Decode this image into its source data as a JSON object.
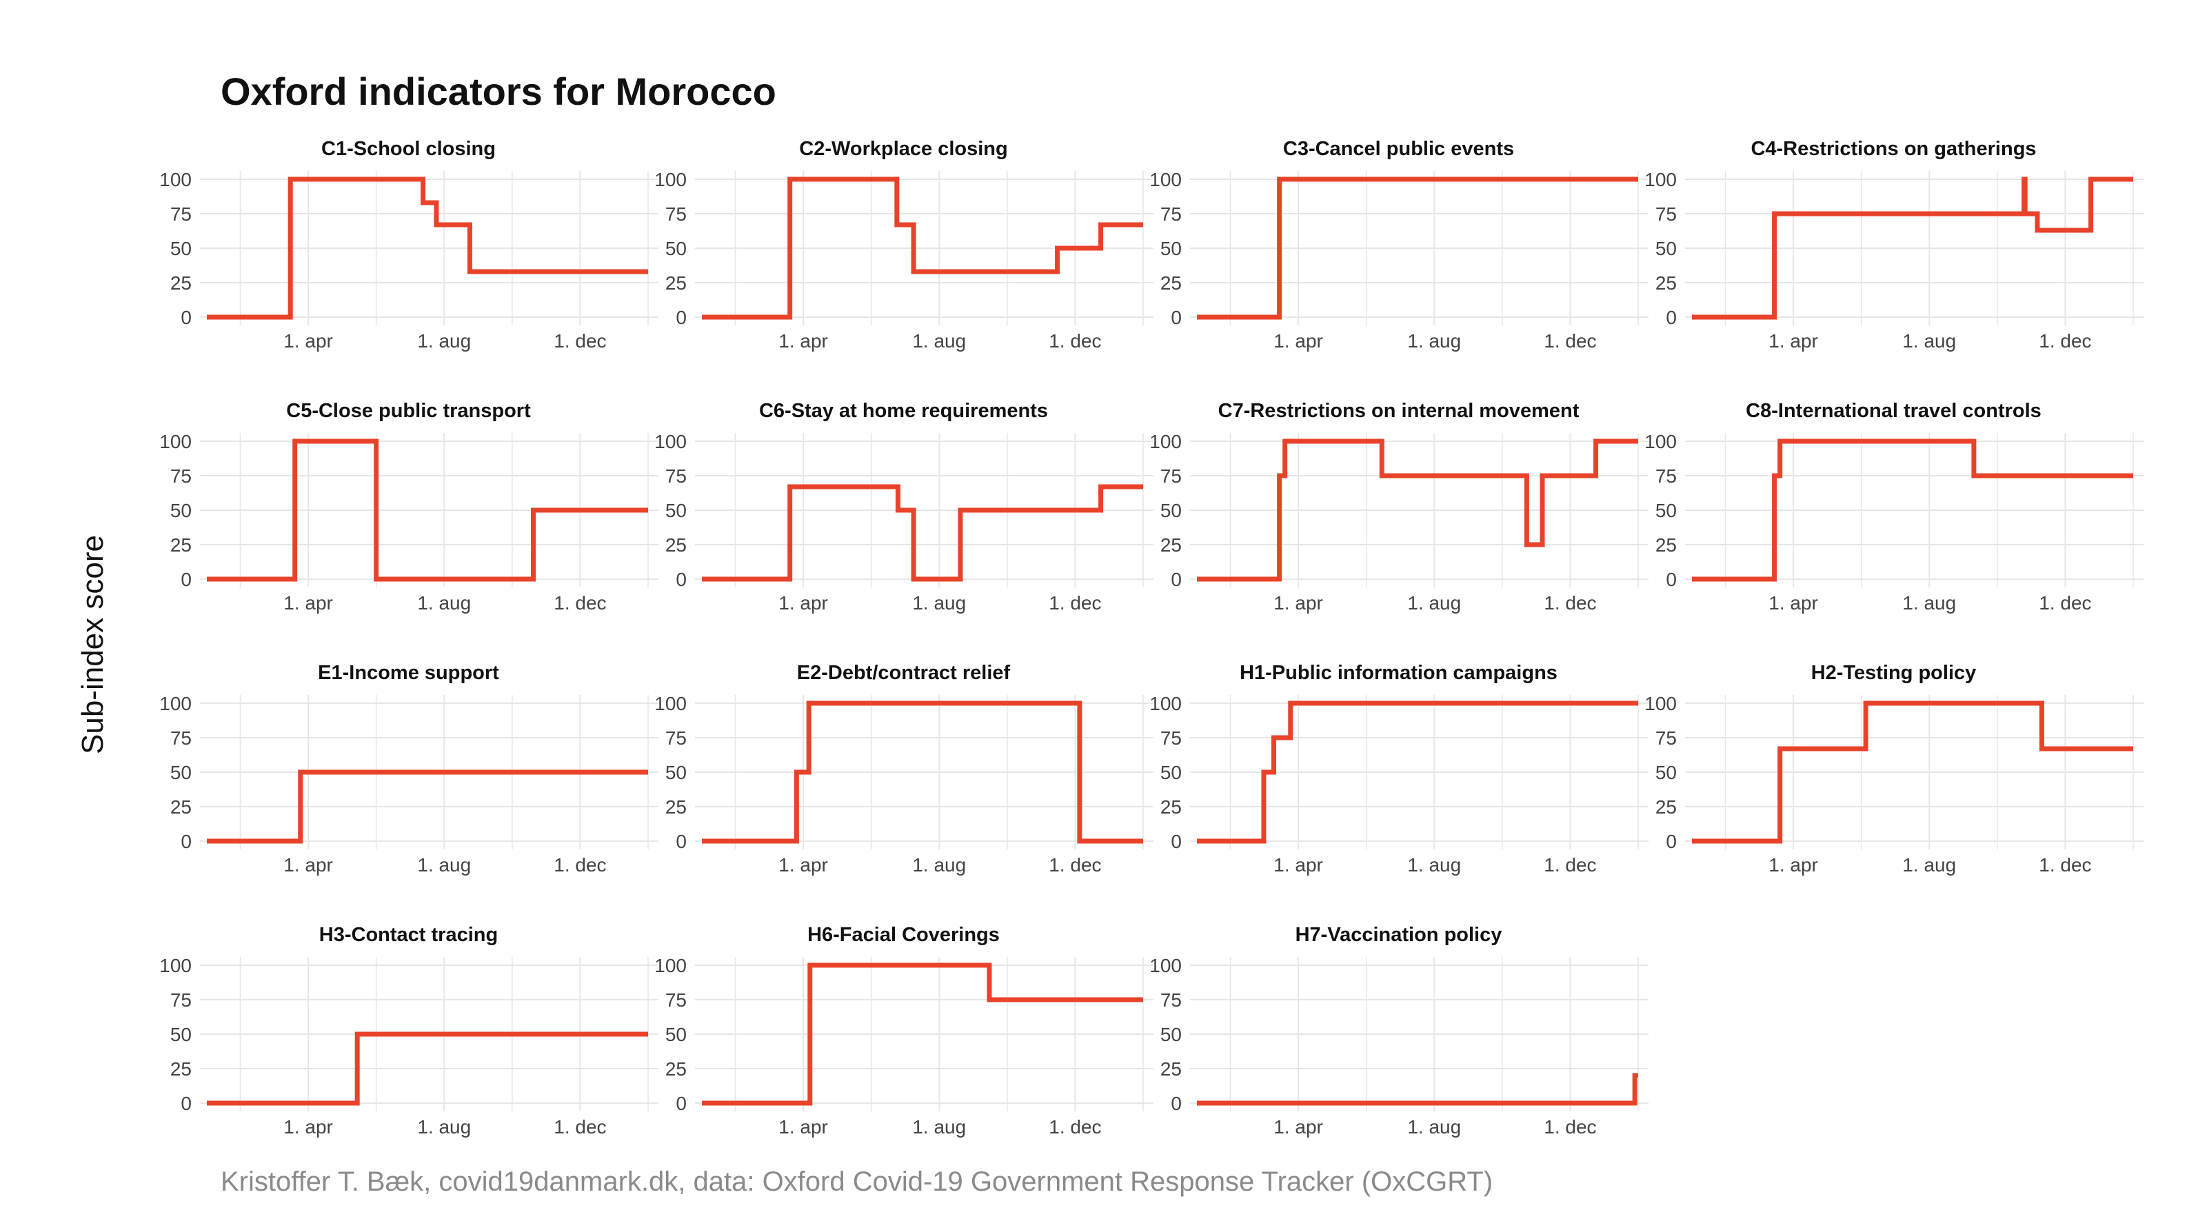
{
  "title": "Oxford indicators for Morocco",
  "ylabel": "Sub-index score",
  "caption": "Kristoffer T. Bæk, covid19danmark.dk, data: Oxford Covid-19 Government Response Tracker (OxCGRT)",
  "colors": {
    "line": "#e8432a",
    "grid": "#e6e6e6",
    "text": "#444444"
  },
  "chart_data": [
    {
      "type": "line",
      "title": "C1-School closing",
      "ylim": [
        0,
        100
      ],
      "yticks": [
        0,
        25,
        50,
        75,
        100
      ],
      "xlim": [
        "2020-01-01",
        "2021-01-31"
      ],
      "xticks": [
        "2020-04-01",
        "2020-08-01",
        "2020-12-01"
      ],
      "xticklabels": [
        "1. apr",
        "1. aug",
        "1. dec"
      ],
      "step": true,
      "points": [
        [
          "2020-01-01",
          0
        ],
        [
          "2020-03-16",
          100
        ],
        [
          "2020-07-13",
          83
        ],
        [
          "2020-07-25",
          67
        ],
        [
          "2020-08-24",
          33
        ],
        [
          "2021-01-31",
          33
        ]
      ]
    },
    {
      "type": "line",
      "title": "C2-Workplace closing",
      "ylim": [
        0,
        100
      ],
      "yticks": [
        0,
        25,
        50,
        75,
        100
      ],
      "xlim": [
        "2020-01-01",
        "2021-01-31"
      ],
      "xticks": [
        "2020-04-01",
        "2020-08-01",
        "2020-12-01"
      ],
      "xticklabels": [
        "1. apr",
        "1. aug",
        "1. dec"
      ],
      "step": true,
      "points": [
        [
          "2020-01-01",
          0
        ],
        [
          "2020-03-20",
          100
        ],
        [
          "2020-06-24",
          67
        ],
        [
          "2020-07-09",
          33
        ],
        [
          "2020-11-15",
          50
        ],
        [
          "2020-12-24",
          67
        ],
        [
          "2021-01-31",
          67
        ]
      ]
    },
    {
      "type": "line",
      "title": "C3-Cancel public events",
      "ylim": [
        0,
        100
      ],
      "yticks": [
        0,
        25,
        50,
        75,
        100
      ],
      "xlim": [
        "2020-01-01",
        "2021-01-31"
      ],
      "xticks": [
        "2020-04-01",
        "2020-08-01",
        "2020-12-01"
      ],
      "xticklabels": [
        "1. apr",
        "1. aug",
        "1. dec"
      ],
      "step": true,
      "points": [
        [
          "2020-01-01",
          0
        ],
        [
          "2020-03-15",
          100
        ],
        [
          "2021-01-31",
          100
        ]
      ]
    },
    {
      "type": "line",
      "title": "C4-Restrictions on gatherings",
      "ylim": [
        0,
        100
      ],
      "yticks": [
        0,
        25,
        50,
        75,
        100
      ],
      "xlim": [
        "2020-01-01",
        "2021-01-31"
      ],
      "xticks": [
        "2020-04-01",
        "2020-08-01",
        "2020-12-01"
      ],
      "xticklabels": [
        "1. apr",
        "1. aug",
        "1. dec"
      ],
      "step": true,
      "points": [
        [
          "2020-01-01",
          0
        ],
        [
          "2020-03-15",
          75
        ],
        [
          "2020-10-25",
          100
        ],
        [
          "2020-10-26",
          75
        ],
        [
          "2020-11-06",
          63
        ],
        [
          "2020-12-24",
          100
        ],
        [
          "2021-01-31",
          100
        ]
      ]
    },
    {
      "type": "line",
      "title": "C5-Close public transport",
      "ylim": [
        0,
        100
      ],
      "yticks": [
        0,
        25,
        50,
        75,
        100
      ],
      "xlim": [
        "2020-01-01",
        "2021-01-31"
      ],
      "xticks": [
        "2020-04-01",
        "2020-08-01",
        "2020-12-01"
      ],
      "xticklabels": [
        "1. apr",
        "1. aug",
        "1. dec"
      ],
      "step": true,
      "points": [
        [
          "2020-01-01",
          0
        ],
        [
          "2020-03-20",
          100
        ],
        [
          "2020-06-01",
          0
        ],
        [
          "2020-10-20",
          50
        ],
        [
          "2021-01-31",
          50
        ]
      ]
    },
    {
      "type": "line",
      "title": "C6-Stay at home requirements",
      "ylim": [
        0,
        100
      ],
      "yticks": [
        0,
        25,
        50,
        75,
        100
      ],
      "xlim": [
        "2020-01-01",
        "2021-01-31"
      ],
      "xticks": [
        "2020-04-01",
        "2020-08-01",
        "2020-12-01"
      ],
      "xticklabels": [
        "1. apr",
        "1. aug",
        "1. dec"
      ],
      "step": true,
      "points": [
        [
          "2020-01-01",
          0
        ],
        [
          "2020-03-20",
          67
        ],
        [
          "2020-06-25",
          50
        ],
        [
          "2020-07-09",
          0
        ],
        [
          "2020-08-20",
          50
        ],
        [
          "2020-12-24",
          67
        ],
        [
          "2021-01-31",
          67
        ]
      ]
    },
    {
      "type": "line",
      "title": "C7-Restrictions on internal movement",
      "ylim": [
        0,
        100
      ],
      "yticks": [
        0,
        25,
        50,
        75,
        100
      ],
      "xlim": [
        "2020-01-01",
        "2021-01-31"
      ],
      "xticks": [
        "2020-04-01",
        "2020-08-01",
        "2020-12-01"
      ],
      "xticklabels": [
        "1. apr",
        "1. aug",
        "1. dec"
      ],
      "step": true,
      "points": [
        [
          "2020-01-01",
          0
        ],
        [
          "2020-03-15",
          75
        ],
        [
          "2020-03-20",
          100
        ],
        [
          "2020-06-15",
          75
        ],
        [
          "2020-10-23",
          25
        ],
        [
          "2020-11-06",
          75
        ],
        [
          "2020-12-24",
          100
        ],
        [
          "2021-01-31",
          100
        ]
      ]
    },
    {
      "type": "line",
      "title": "C8-International travel controls",
      "ylim": [
        0,
        100
      ],
      "yticks": [
        0,
        25,
        50,
        75,
        100
      ],
      "xlim": [
        "2020-01-01",
        "2021-01-31"
      ],
      "xticks": [
        "2020-04-01",
        "2020-08-01",
        "2020-12-01"
      ],
      "xticklabels": [
        "1. apr",
        "1. aug",
        "1. dec"
      ],
      "step": true,
      "points": [
        [
          "2020-01-01",
          0
        ],
        [
          "2020-03-15",
          75
        ],
        [
          "2020-03-20",
          100
        ],
        [
          "2020-09-10",
          75
        ],
        [
          "2021-01-31",
          75
        ]
      ]
    },
    {
      "type": "line",
      "title": "E1-Income support",
      "ylim": [
        0,
        100
      ],
      "yticks": [
        0,
        25,
        50,
        75,
        100
      ],
      "xlim": [
        "2020-01-01",
        "2021-01-31"
      ],
      "xticks": [
        "2020-04-01",
        "2020-08-01",
        "2020-12-01"
      ],
      "xticklabels": [
        "1. apr",
        "1. aug",
        "1. dec"
      ],
      "step": true,
      "points": [
        [
          "2020-01-01",
          0
        ],
        [
          "2020-03-25",
          50
        ],
        [
          "2021-01-31",
          50
        ]
      ]
    },
    {
      "type": "line",
      "title": "E2-Debt/contract relief",
      "ylim": [
        0,
        100
      ],
      "yticks": [
        0,
        25,
        50,
        75,
        100
      ],
      "xlim": [
        "2020-01-01",
        "2021-01-31"
      ],
      "xticks": [
        "2020-04-01",
        "2020-08-01",
        "2020-12-01"
      ],
      "xticklabels": [
        "1. apr",
        "1. aug",
        "1. dec"
      ],
      "step": true,
      "points": [
        [
          "2020-01-01",
          0
        ],
        [
          "2020-03-26",
          50
        ],
        [
          "2020-04-06",
          100
        ],
        [
          "2020-12-05",
          0
        ],
        [
          "2021-01-31",
          0
        ]
      ]
    },
    {
      "type": "line",
      "title": "H1-Public information campaigns",
      "ylim": [
        0,
        100
      ],
      "yticks": [
        0,
        25,
        50,
        75,
        100
      ],
      "xlim": [
        "2020-01-01",
        "2021-01-31"
      ],
      "xticks": [
        "2020-04-01",
        "2020-08-01",
        "2020-12-01"
      ],
      "xticklabels": [
        "1. apr",
        "1. aug",
        "1. dec"
      ],
      "step": true,
      "points": [
        [
          "2020-01-01",
          0
        ],
        [
          "2020-03-01",
          50
        ],
        [
          "2020-03-10",
          75
        ],
        [
          "2020-03-25",
          100
        ],
        [
          "2021-01-31",
          100
        ]
      ]
    },
    {
      "type": "line",
      "title": "H2-Testing policy",
      "ylim": [
        0,
        100
      ],
      "yticks": [
        0,
        25,
        50,
        75,
        100
      ],
      "xlim": [
        "2020-01-01",
        "2021-01-31"
      ],
      "xticks": [
        "2020-04-01",
        "2020-08-01",
        "2020-12-01"
      ],
      "xticklabels": [
        "1. apr",
        "1. aug",
        "1. dec"
      ],
      "step": true,
      "points": [
        [
          "2020-01-01",
          0
        ],
        [
          "2020-03-20",
          67
        ],
        [
          "2020-06-05",
          100
        ],
        [
          "2020-11-10",
          67
        ],
        [
          "2021-01-31",
          67
        ]
      ]
    },
    {
      "type": "line",
      "title": "H3-Contact tracing",
      "ylim": [
        0,
        100
      ],
      "yticks": [
        0,
        25,
        50,
        75,
        100
      ],
      "xlim": [
        "2020-01-01",
        "2021-01-31"
      ],
      "xticks": [
        "2020-04-01",
        "2020-08-01",
        "2020-12-01"
      ],
      "xticklabels": [
        "1. apr",
        "1. aug",
        "1. dec"
      ],
      "step": true,
      "points": [
        [
          "2020-01-01",
          0
        ],
        [
          "2020-05-15",
          50
        ],
        [
          "2021-01-31",
          50
        ]
      ]
    },
    {
      "type": "line",
      "title": "H6-Facial Coverings",
      "ylim": [
        0,
        100
      ],
      "yticks": [
        0,
        25,
        50,
        75,
        100
      ],
      "xlim": [
        "2020-01-01",
        "2021-01-31"
      ],
      "xticks": [
        "2020-04-01",
        "2020-08-01",
        "2020-12-01"
      ],
      "xticklabels": [
        "1. apr",
        "1. aug",
        "1. dec"
      ],
      "step": true,
      "points": [
        [
          "2020-01-01",
          0
        ],
        [
          "2020-04-07",
          100
        ],
        [
          "2020-09-15",
          75
        ],
        [
          "2021-01-31",
          75
        ]
      ]
    },
    {
      "type": "line",
      "title": "H7-Vaccination policy",
      "ylim": [
        0,
        100
      ],
      "yticks": [
        0,
        25,
        50,
        75,
        100
      ],
      "xlim": [
        "2020-01-01",
        "2021-01-31"
      ],
      "xticks": [
        "2020-04-01",
        "2020-08-01",
        "2020-12-01"
      ],
      "xticklabels": [
        "1. apr",
        "1. aug",
        "1. dec"
      ],
      "step": true,
      "points": [
        [
          "2020-01-01",
          0
        ],
        [
          "2021-01-28",
          20
        ],
        [
          "2021-01-31",
          20
        ]
      ]
    }
  ]
}
